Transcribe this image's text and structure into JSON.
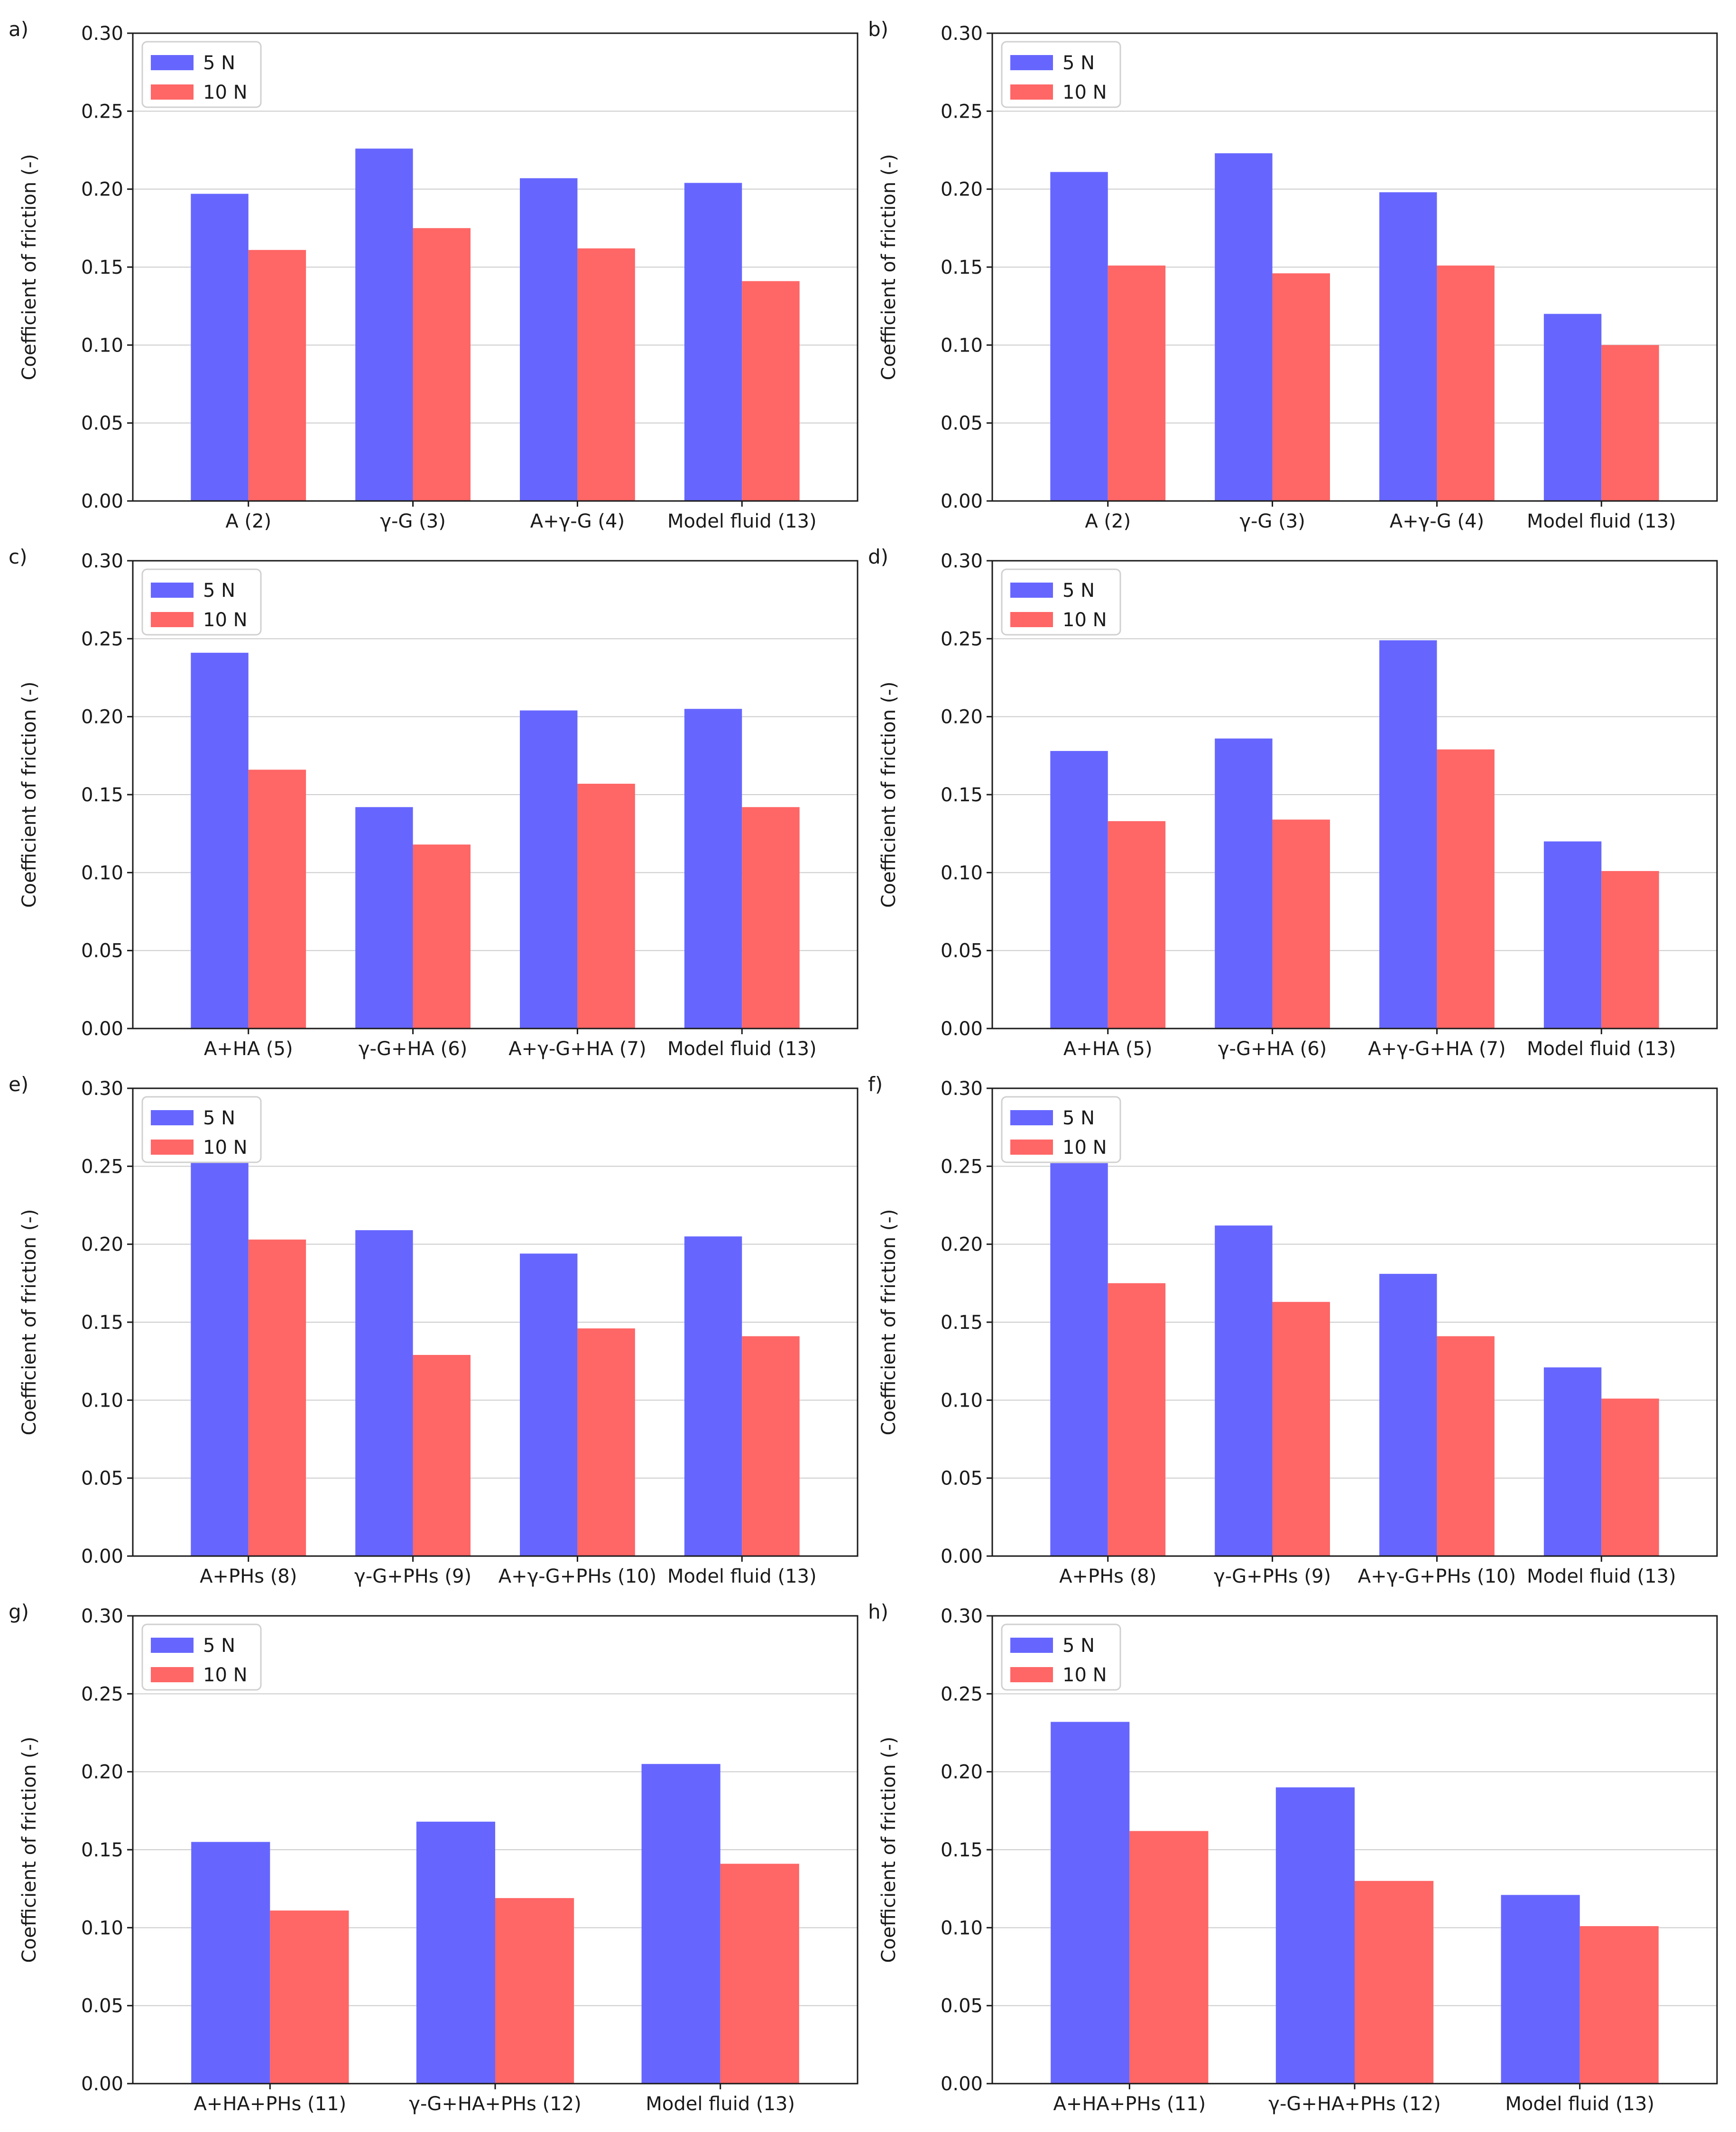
{
  "colors": {
    "series_5N": "#6666ff",
    "series_10N": "#ff6666"
  },
  "chart_data": [
    {
      "panel": "a)",
      "type": "bar",
      "categories": [
        "A (2)",
        "γ-G (3)",
        "A+γ-G (4)",
        "Model fluid (13)"
      ],
      "series": [
        {
          "name": "5 N",
          "values": [
            0.197,
            0.226,
            0.207,
            0.204
          ]
        },
        {
          "name": "10 N",
          "values": [
            0.161,
            0.175,
            0.162,
            0.141
          ]
        }
      ],
      "ylabel": "Coefficient of friction (-)",
      "ylim": [
        0,
        0.3
      ],
      "yticks": [
        "0.00",
        "0.05",
        "0.10",
        "0.15",
        "0.20",
        "0.25",
        "0.30"
      ],
      "grid": "horizontal",
      "legend": "top-left"
    },
    {
      "panel": "b)",
      "type": "bar",
      "categories": [
        "A (2)",
        "γ-G (3)",
        "A+γ-G (4)",
        "Model fluid (13)"
      ],
      "series": [
        {
          "name": "5 N",
          "values": [
            0.211,
            0.223,
            0.198,
            0.12
          ]
        },
        {
          "name": "10 N",
          "values": [
            0.151,
            0.146,
            0.151,
            0.1
          ]
        }
      ],
      "ylabel": "Coefficient of friction (-)",
      "ylim": [
        0,
        0.3
      ],
      "yticks": [
        "0.00",
        "0.05",
        "0.10",
        "0.15",
        "0.20",
        "0.25",
        "0.30"
      ],
      "grid": "horizontal",
      "legend": "top-left"
    },
    {
      "panel": "c)",
      "type": "bar",
      "categories": [
        "A+HA (5)",
        "γ-G+HA (6)",
        "A+γ-G+HA (7)",
        "Model fluid (13)"
      ],
      "series": [
        {
          "name": "5 N",
          "values": [
            0.241,
            0.142,
            0.204,
            0.205
          ]
        },
        {
          "name": "10 N",
          "values": [
            0.166,
            0.118,
            0.157,
            0.142
          ]
        }
      ],
      "ylabel": "Coefficient of friction (-)",
      "ylim": [
        0,
        0.3
      ],
      "yticks": [
        "0.00",
        "0.05",
        "0.10",
        "0.15",
        "0.20",
        "0.25",
        "0.30"
      ],
      "grid": "horizontal",
      "legend": "top-left"
    },
    {
      "panel": "d)",
      "type": "bar",
      "categories": [
        "A+HA (5)",
        "γ-G+HA (6)",
        "A+γ-G+HA (7)",
        "Model fluid (13)"
      ],
      "series": [
        {
          "name": "5 N",
          "values": [
            0.178,
            0.186,
            0.249,
            0.12
          ]
        },
        {
          "name": "10 N",
          "values": [
            0.133,
            0.134,
            0.179,
            0.101
          ]
        }
      ],
      "ylabel": "Coefficient of friction (-)",
      "ylim": [
        0,
        0.3
      ],
      "yticks": [
        "0.00",
        "0.05",
        "0.10",
        "0.15",
        "0.20",
        "0.25",
        "0.30"
      ],
      "grid": "horizontal",
      "legend": "top-left"
    },
    {
      "panel": "e)",
      "type": "bar",
      "categories": [
        "A+PHs (8)",
        "γ-G+PHs (9)",
        "A+γ-G+PHs (10)",
        "Model fluid (13)"
      ],
      "series": [
        {
          "name": "5 N",
          "values": [
            0.278,
            0.209,
            0.194,
            0.205
          ]
        },
        {
          "name": "10 N",
          "values": [
            0.203,
            0.129,
            0.146,
            0.141
          ]
        }
      ],
      "ylabel": "Coefficient of friction (-)",
      "ylim": [
        0,
        0.3
      ],
      "yticks": [
        "0.00",
        "0.05",
        "0.10",
        "0.15",
        "0.20",
        "0.25",
        "0.30"
      ],
      "grid": "horizontal",
      "legend": "top-left"
    },
    {
      "panel": "f)",
      "type": "bar",
      "categories": [
        "A+PHs (8)",
        "γ-G+PHs (9)",
        "A+γ-G+PHs (10)",
        "Model fluid (13)"
      ],
      "series": [
        {
          "name": "5 N",
          "values": [
            0.252,
            0.212,
            0.181,
            0.121
          ]
        },
        {
          "name": "10 N",
          "values": [
            0.175,
            0.163,
            0.141,
            0.101
          ]
        }
      ],
      "ylabel": "Coefficient of friction (-)",
      "ylim": [
        0,
        0.3
      ],
      "yticks": [
        "0.00",
        "0.05",
        "0.10",
        "0.15",
        "0.20",
        "0.25",
        "0.30"
      ],
      "grid": "horizontal",
      "legend": "top-left"
    },
    {
      "panel": "g)",
      "type": "bar",
      "categories": [
        "A+HA+PHs (11)",
        "γ-G+HA+PHs (12)",
        "Model fluid (13)"
      ],
      "series": [
        {
          "name": "5 N",
          "values": [
            0.155,
            0.168,
            0.205
          ]
        },
        {
          "name": "10 N",
          "values": [
            0.111,
            0.119,
            0.141
          ]
        }
      ],
      "ylabel": "Coefficient of friction (-)",
      "ylim": [
        0,
        0.3
      ],
      "yticks": [
        "0.00",
        "0.05",
        "0.10",
        "0.15",
        "0.20",
        "0.25",
        "0.30"
      ],
      "grid": "horizontal",
      "legend": "top-left"
    },
    {
      "panel": "h)",
      "type": "bar",
      "categories": [
        "A+HA+PHs (11)",
        "γ-G+HA+PHs (12)",
        "Model fluid (13)"
      ],
      "series": [
        {
          "name": "5 N",
          "values": [
            0.232,
            0.19,
            0.121
          ]
        },
        {
          "name": "10 N",
          "values": [
            0.162,
            0.13,
            0.101
          ]
        }
      ],
      "ylabel": "Coefficient of friction (-)",
      "ylim": [
        0,
        0.3
      ],
      "yticks": [
        "0.00",
        "0.05",
        "0.10",
        "0.15",
        "0.20",
        "0.25",
        "0.30"
      ],
      "grid": "horizontal",
      "legend": "top-left"
    }
  ]
}
